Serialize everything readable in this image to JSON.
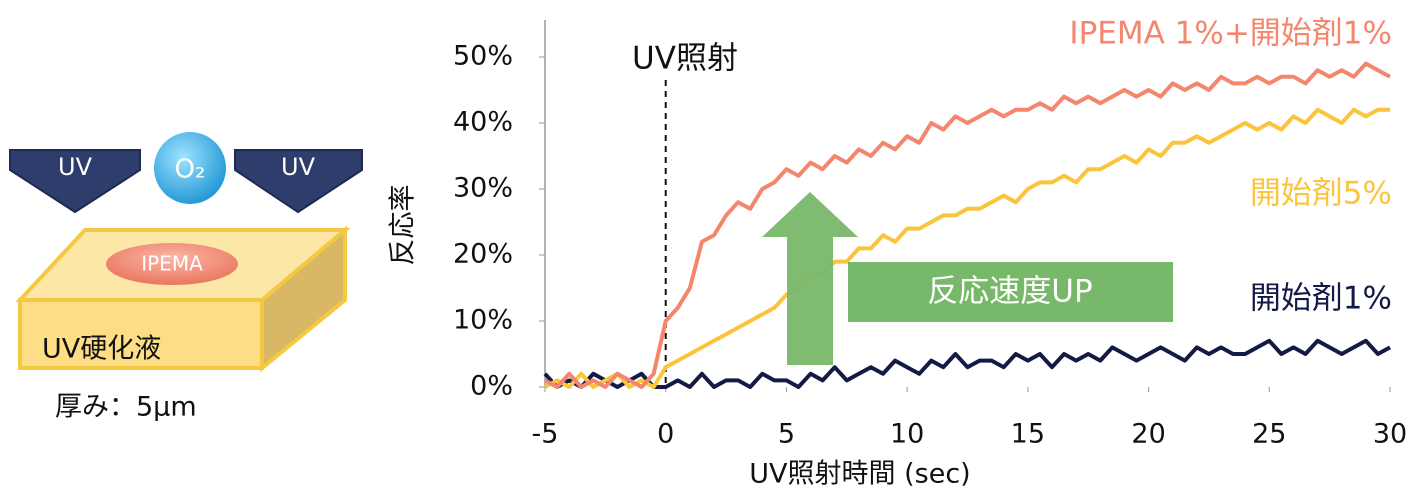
{
  "chart_data": {
    "type": "line",
    "x": [
      -5,
      -4.5,
      -4,
      -3.5,
      -3,
      -2.5,
      -2,
      -1.5,
      -1,
      -0.5,
      0,
      0.5,
      1,
      1.5,
      2,
      2.5,
      3,
      3.5,
      4,
      4.5,
      5,
      5.5,
      6,
      6.5,
      7,
      7.5,
      8,
      8.5,
      9,
      9.5,
      10,
      10.5,
      11,
      11.5,
      12,
      12.5,
      13,
      13.5,
      14,
      14.5,
      15,
      15.5,
      16,
      16.5,
      17,
      17.5,
      18,
      18.5,
      19,
      19.5,
      20,
      20.5,
      21,
      21.5,
      22,
      22.5,
      23,
      23.5,
      24,
      24.5,
      25,
      25.5,
      26,
      26.5,
      27,
      27.5,
      28,
      28.5,
      29,
      29.5,
      30
    ],
    "series": [
      {
        "name": "IPEMA 1%+開始剤1%",
        "color": "#f4866e",
        "values": [
          1,
          0,
          2,
          0,
          1,
          0,
          2,
          1,
          0,
          2,
          10,
          12,
          15,
          22,
          23,
          26,
          28,
          27,
          30,
          31,
          33,
          32,
          34,
          33,
          35,
          34,
          36,
          35,
          37,
          36,
          38,
          37,
          40,
          39,
          41,
          40,
          41,
          42,
          41,
          42,
          42,
          43,
          42,
          44,
          43,
          44,
          43,
          44,
          45,
          44,
          45,
          44,
          46,
          45,
          46,
          45,
          47,
          46,
          46,
          47,
          46,
          47,
          47,
          46,
          48,
          47,
          48,
          47,
          49,
          48,
          47
        ]
      },
      {
        "name": "開始剤5%",
        "color": "#fbc43a",
        "values": [
          0,
          1,
          0,
          2,
          0,
          1,
          2,
          0,
          1,
          0,
          3,
          4,
          5,
          6,
          7,
          8,
          9,
          10,
          11,
          12,
          14,
          15,
          17,
          17,
          19,
          19,
          21,
          21,
          23,
          22,
          24,
          24,
          25,
          26,
          26,
          27,
          27,
          28,
          29,
          28,
          30,
          31,
          31,
          32,
          31,
          33,
          33,
          34,
          35,
          34,
          36,
          35,
          37,
          37,
          38,
          37,
          38,
          39,
          40,
          39,
          40,
          39,
          41,
          40,
          42,
          41,
          40,
          42,
          41,
          42,
          42
        ]
      },
      {
        "name": "開始剤1%",
        "color": "#141a46",
        "values": [
          2,
          0,
          1,
          0,
          2,
          1,
          0,
          1,
          2,
          0,
          0,
          1,
          0,
          2,
          0,
          1,
          1,
          0,
          2,
          1,
          1,
          0,
          2,
          1,
          3,
          1,
          2,
          3,
          2,
          4,
          3,
          2,
          4,
          3,
          5,
          3,
          4,
          4,
          3,
          5,
          4,
          5,
          3,
          5,
          4,
          5,
          4,
          6,
          5,
          4,
          5,
          6,
          5,
          4,
          6,
          5,
          6,
          5,
          5,
          6,
          7,
          5,
          6,
          5,
          7,
          6,
          5,
          6,
          7,
          5,
          6
        ]
      }
    ],
    "xlabel": "UV照射時間 (sec)",
    "ylabel": "反応率",
    "xlim": [
      -5,
      30
    ],
    "xticks": [
      -5,
      0,
      5,
      10,
      15,
      20,
      25,
      30
    ],
    "ylim": [
      0,
      55
    ],
    "yticks": [
      {
        "value": 0,
        "label": "0%"
      },
      {
        "value": 10,
        "label": "10%"
      },
      {
        "value": 20,
        "label": "20%"
      },
      {
        "value": 30,
        "label": "30%"
      },
      {
        "value": 40,
        "label": "40%"
      },
      {
        "value": 50,
        "label": "50%"
      }
    ],
    "annotations": [
      "UV照射",
      "反応速度UP"
    ]
  },
  "diagram": {
    "uv_left": "UV",
    "oxygen": "O₂",
    "uv_right": "UV",
    "additive": "IPEMA",
    "liquid": "UV硬化液",
    "thickness": "厚み：5μm"
  }
}
